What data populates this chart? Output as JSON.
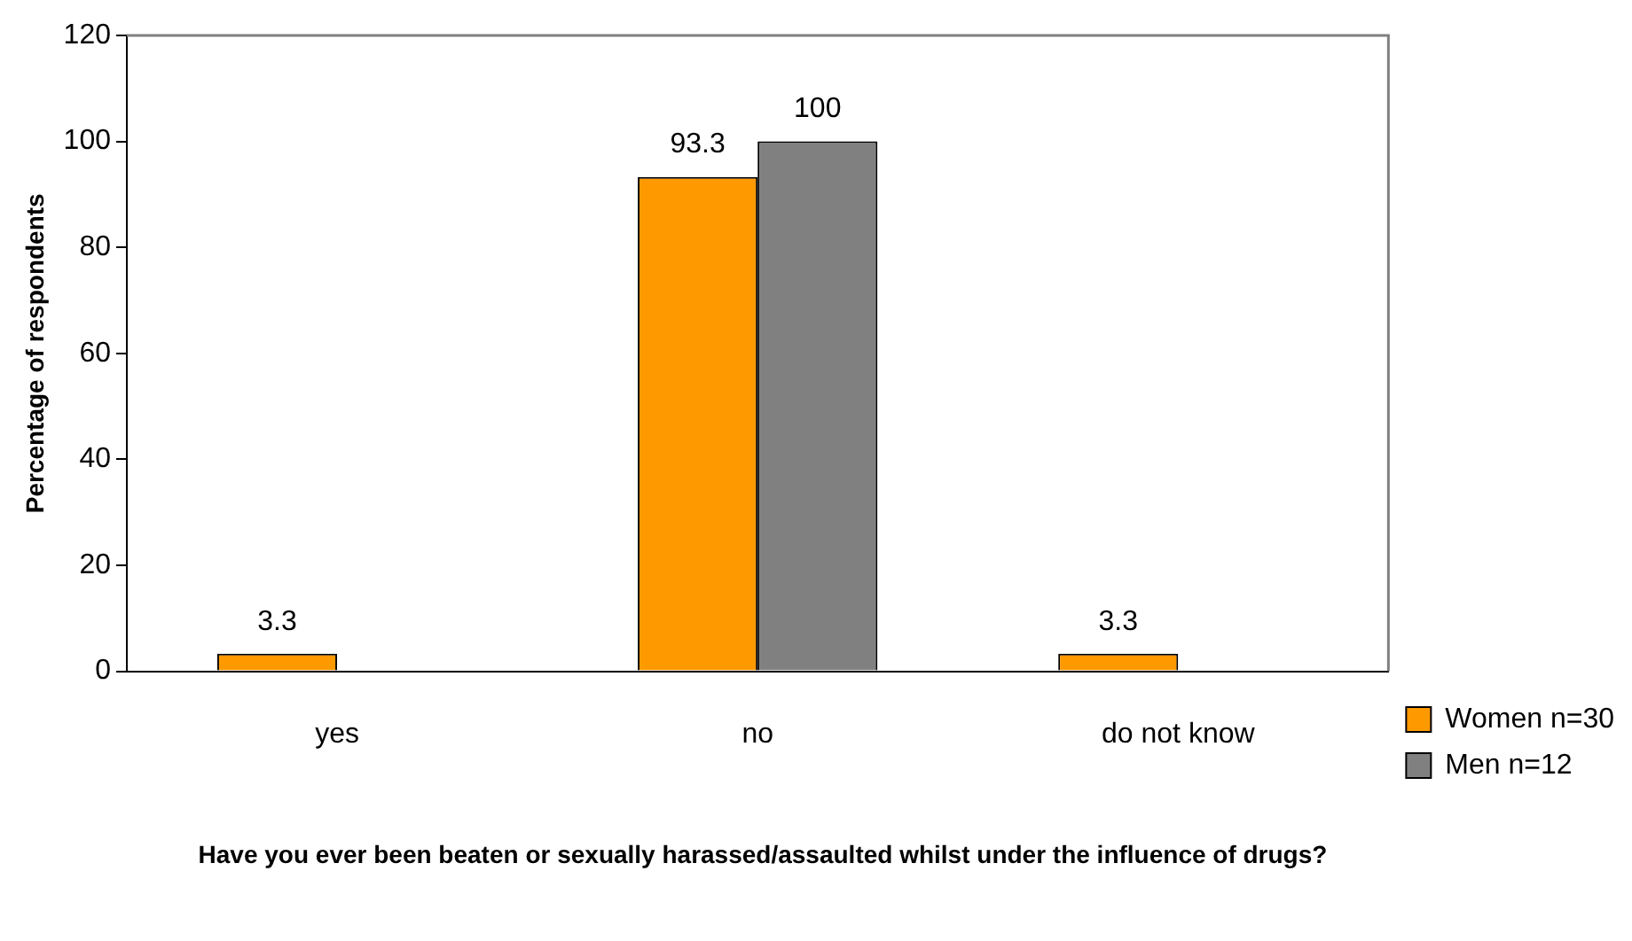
{
  "chart_data": {
    "type": "bar",
    "ylabel": "Percentage of respondents",
    "xlabel": "Have you ever been beaten or sexually harassed/assaulted whilst under the influence of drugs?",
    "categories": [
      "yes",
      "no",
      "do not know"
    ],
    "series": [
      {
        "name": "Women n=30",
        "color": "#ff9900",
        "values": [
          3.3,
          93.3,
          3.3
        ]
      },
      {
        "name": "Men n=12",
        "color": "#808080",
        "values": [
          null,
          100,
          null
        ]
      }
    ],
    "ylim": [
      0,
      120
    ],
    "yticks": [
      0,
      20,
      40,
      60,
      80,
      100,
      120
    ],
    "grid": false,
    "legend": "right",
    "data_labels": true
  }
}
